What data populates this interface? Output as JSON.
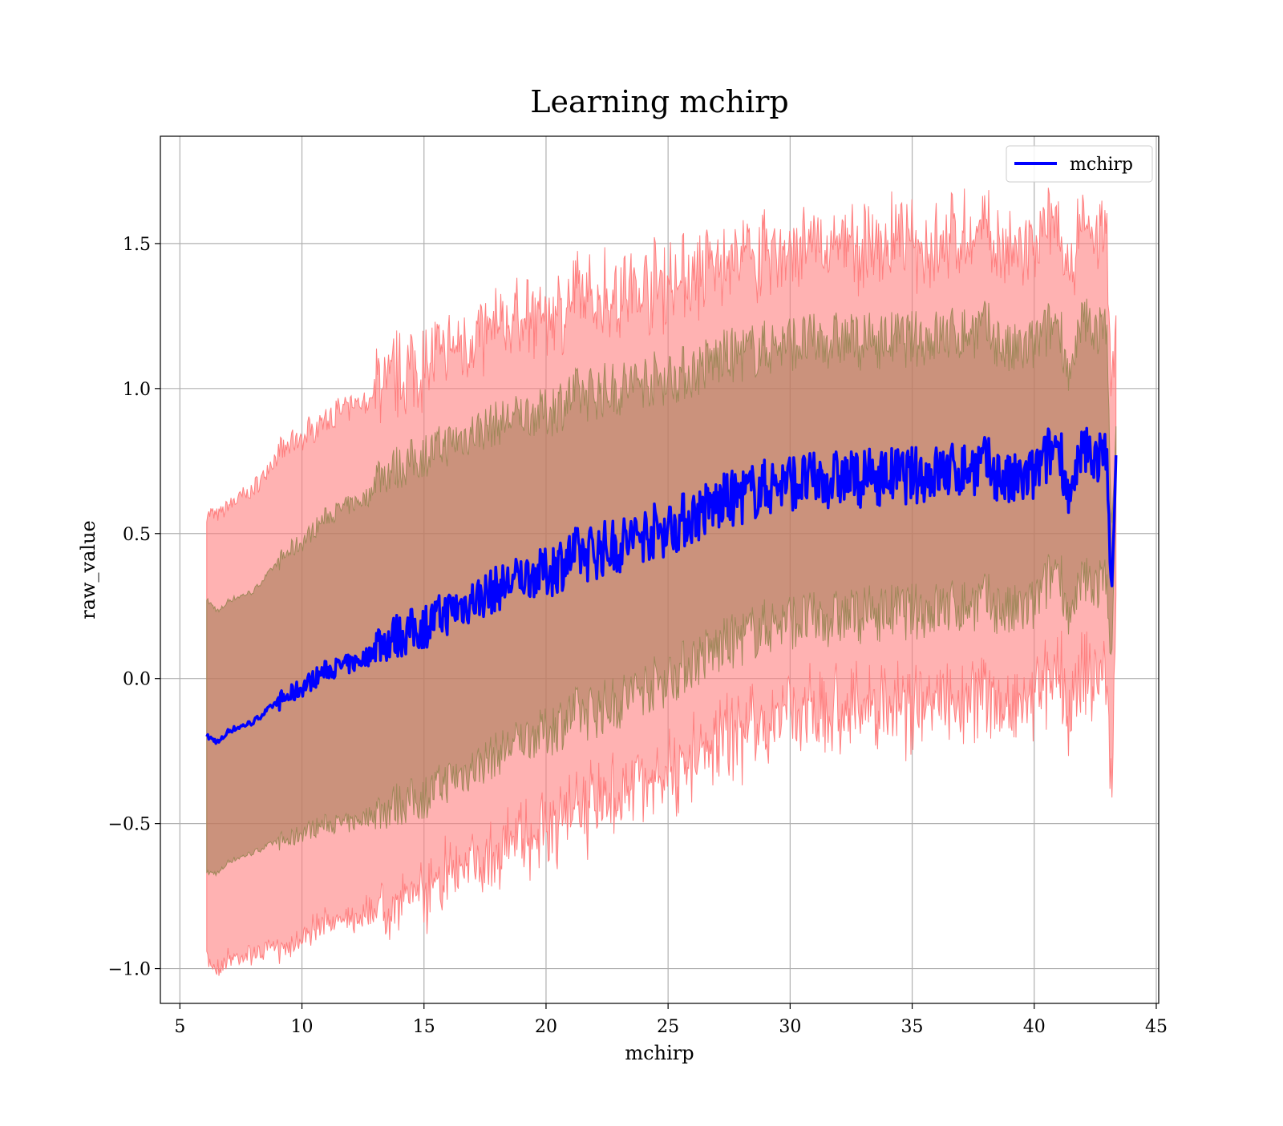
{
  "chart_data": {
    "type": "line",
    "title": "Learning mchirp",
    "xlabel": "mchirp",
    "ylabel": "raw_value",
    "xlim": [
      4.2,
      45.1
    ],
    "ylim": [
      -1.12,
      1.87
    ],
    "xticks": [
      5,
      10,
      15,
      20,
      25,
      30,
      35,
      40,
      45
    ],
    "yticks": [
      -1.0,
      -0.5,
      0.0,
      0.5,
      1.0,
      1.5
    ],
    "ytick_labels": [
      "−1.0",
      "−0.5",
      "0.0",
      "0.5",
      "1.0",
      "1.5"
    ],
    "xtick_labels": [
      "5",
      "10",
      "15",
      "20",
      "25",
      "30",
      "35",
      "40",
      "45"
    ],
    "grid": true,
    "legend": {
      "position": "top-right",
      "entries": [
        "mchirp"
      ]
    },
    "colors": {
      "line": "#0000ff",
      "band_outer": "#ff7f7f",
      "band_inner": "#a07850"
    },
    "series": [
      {
        "name": "mchirp",
        "x": [
          6.1,
          6.6,
          7,
          8,
          9,
          9.5,
          10,
          11,
          12,
          12.8,
          13,
          14,
          15,
          16,
          17,
          18,
          19,
          20,
          21,
          22,
          23,
          24,
          25,
          26,
          27,
          28,
          29,
          30,
          31,
          32,
          33,
          34,
          35,
          36,
          37,
          38,
          39,
          40,
          41,
          41.5,
          42,
          43,
          43.2,
          43.35
        ],
        "values": [
          -0.2,
          -0.22,
          -0.18,
          -0.15,
          -0.08,
          -0.06,
          -0.03,
          0.03,
          0.05,
          0.08,
          0.12,
          0.15,
          0.18,
          0.23,
          0.27,
          0.31,
          0.35,
          0.37,
          0.42,
          0.44,
          0.46,
          0.5,
          0.52,
          0.56,
          0.6,
          0.63,
          0.66,
          0.68,
          0.68,
          0.69,
          0.69,
          0.7,
          0.7,
          0.71,
          0.72,
          0.74,
          0.67,
          0.7,
          0.82,
          0.6,
          0.79,
          0.75,
          0.26,
          0.77
        ],
        "inner_band": [
          0.47,
          0.45,
          0.45,
          0.45,
          0.48,
          0.5,
          0.5,
          0.53,
          0.55,
          0.55,
          0.58,
          0.58,
          0.59,
          0.58,
          0.58,
          0.57,
          0.56,
          0.55,
          0.55,
          0.55,
          0.54,
          0.53,
          0.52,
          0.5,
          0.5,
          0.49,
          0.48,
          0.48,
          0.48,
          0.48,
          0.47,
          0.47,
          0.47,
          0.47,
          0.47,
          0.47,
          0.45,
          0.45,
          0.42,
          0.42,
          0.45,
          0.43,
          0.2,
          0.1
        ],
        "outer_band": [
          0.77,
          0.78,
          0.78,
          0.8,
          0.85,
          0.86,
          0.86,
          0.87,
          0.88,
          0.88,
          0.9,
          0.9,
          0.9,
          0.9,
          0.9,
          0.9,
          0.9,
          0.88,
          0.88,
          0.88,
          0.87,
          0.85,
          0.85,
          0.82,
          0.83,
          0.82,
          0.8,
          0.8,
          0.8,
          0.8,
          0.8,
          0.8,
          0.8,
          0.8,
          0.8,
          0.8,
          0.78,
          0.78,
          0.75,
          0.75,
          0.78,
          0.75,
          0.7,
          0.4
        ]
      }
    ]
  }
}
